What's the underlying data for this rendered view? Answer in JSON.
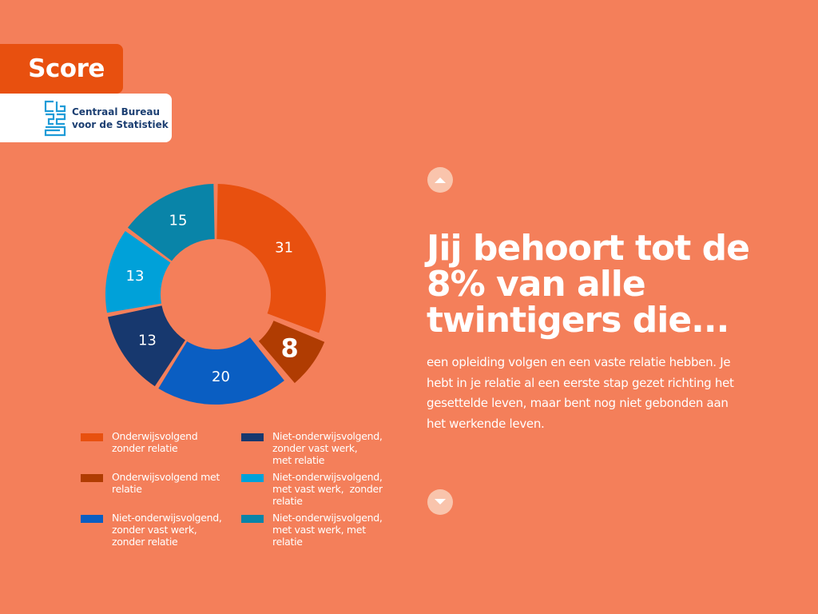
{
  "header": {
    "score_label": "Score",
    "logo": {
      "line1": "Centraal Bureau",
      "line2": "voor de Statistiek"
    }
  },
  "colors": {
    "background": "#f47f5a",
    "accent": "#e8500f"
  },
  "chart_data": {
    "type": "pie",
    "variant": "donut",
    "categories": [
      "Onderwijsvolgend zonder relatie",
      "Onderwijsvolgend met relatie",
      "Niet-onderwijsvolgend, zonder vast werk, zonder relatie",
      "Niet-onderwijsvolgend, zonder vast werk, met relatie",
      "Niet-onderwijsvolgend, met vast werk, zonder relatie",
      "Niet-onderwijsvolgend, met vast werk, met relatie"
    ],
    "values": [
      31,
      8,
      20,
      13,
      13,
      15
    ],
    "colors": [
      "#e8500f",
      "#b03c02",
      "#0a5ec2",
      "#17386e",
      "#00a1d9",
      "#0984a8"
    ],
    "highlighted": "Onderwijsvolgend met relatie",
    "legend_position": "bottom",
    "legend": [
      {
        "lines": [
          "Onderwijsvolgend",
          "zonder relatie"
        ],
        "color": "#e8500f"
      },
      {
        "lines": [
          "Onderwijsvolgend met",
          "relatie"
        ],
        "color": "#b03c02"
      },
      {
        "lines": [
          "Niet-onderwijsvolgend,",
          "zonder vast werk,",
          "zonder relatie"
        ],
        "color": "#0a5ec2"
      },
      {
        "lines": [
          "Niet-onderwijsvolgend,",
          "zonder vast werk,",
          "met relatie"
        ],
        "color": "#17386e"
      },
      {
        "lines": [
          "Niet-onderwijsvolgend,",
          "met vast werk,  zonder",
          "relatie"
        ],
        "color": "#00a1d9"
      },
      {
        "lines": [
          "Niet-onderwijsvolgend,",
          "met vast werk, met",
          "relatie"
        ],
        "color": "#0984a8"
      }
    ]
  },
  "result": {
    "heading_lines": [
      "Jij behoort tot de",
      "8% van alle",
      "twintigers die..."
    ],
    "body": "een opleiding volgen en een vaste relatie hebben. Je hebt in je relatie al een eerste stap gezet richting het gesettelde leven, maar bent nog niet gebonden aan het werkende leven."
  },
  "navigation": {
    "prev_icon": "chevron-up-icon",
    "next_icon": "chevron-down-icon"
  }
}
